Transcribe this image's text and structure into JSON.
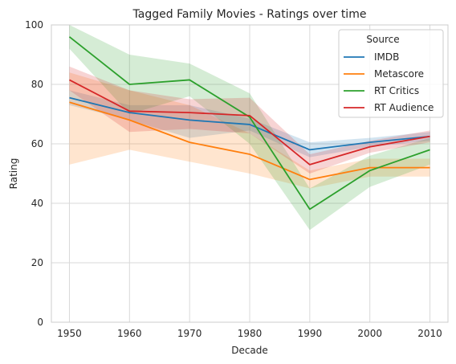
{
  "chart_data": {
    "type": "line",
    "title": "Tagged Family Movies - Ratings over time",
    "xlabel": "Decade",
    "ylabel": "Rating",
    "x": [
      1950,
      1960,
      1970,
      1980,
      1990,
      2000,
      2010
    ],
    "xlim": [
      1947,
      2013
    ],
    "ylim": [
      0,
      100
    ],
    "yticks": [
      0,
      20,
      40,
      60,
      80,
      100
    ],
    "grid": true,
    "legend": {
      "title": "Source",
      "placement": "top-right"
    },
    "series": [
      {
        "name": "IMDB",
        "color": "#1f77b4",
        "values": [
          75.5,
          70.5,
          68,
          66.5,
          58,
          60.5,
          62.5
        ],
        "lower": [
          73,
          68,
          62,
          64.5,
          55.5,
          59,
          61
        ],
        "upper": [
          78,
          73,
          73,
          68.5,
          60.5,
          62,
          64
        ]
      },
      {
        "name": "Metascore",
        "color": "#ff7f0e",
        "values": [
          74,
          68,
          60.5,
          56.5,
          48,
          52,
          52
        ],
        "lower": [
          53,
          58,
          54,
          50,
          45,
          49,
          49
        ],
        "upper": [
          84,
          78,
          73,
          63.5,
          51,
          55,
          55
        ]
      },
      {
        "name": "RT Critics",
        "color": "#2ca02c",
        "values": [
          96,
          80,
          81.5,
          69,
          38,
          51,
          58
        ],
        "lower": [
          92,
          70,
          76,
          60,
          31,
          45.5,
          53
        ],
        "upper": [
          100,
          90,
          87,
          77,
          45,
          56,
          62
        ]
      },
      {
        "name": "RT Audience",
        "color": "#d62728",
        "values": [
          81.5,
          71,
          70.5,
          69.5,
          53,
          59,
          62.5
        ],
        "lower": [
          78,
          64,
          65,
          63.5,
          50,
          57,
          60.5
        ],
        "upper": [
          86,
          78,
          75,
          75.5,
          56.5,
          61,
          64.5
        ]
      }
    ]
  }
}
